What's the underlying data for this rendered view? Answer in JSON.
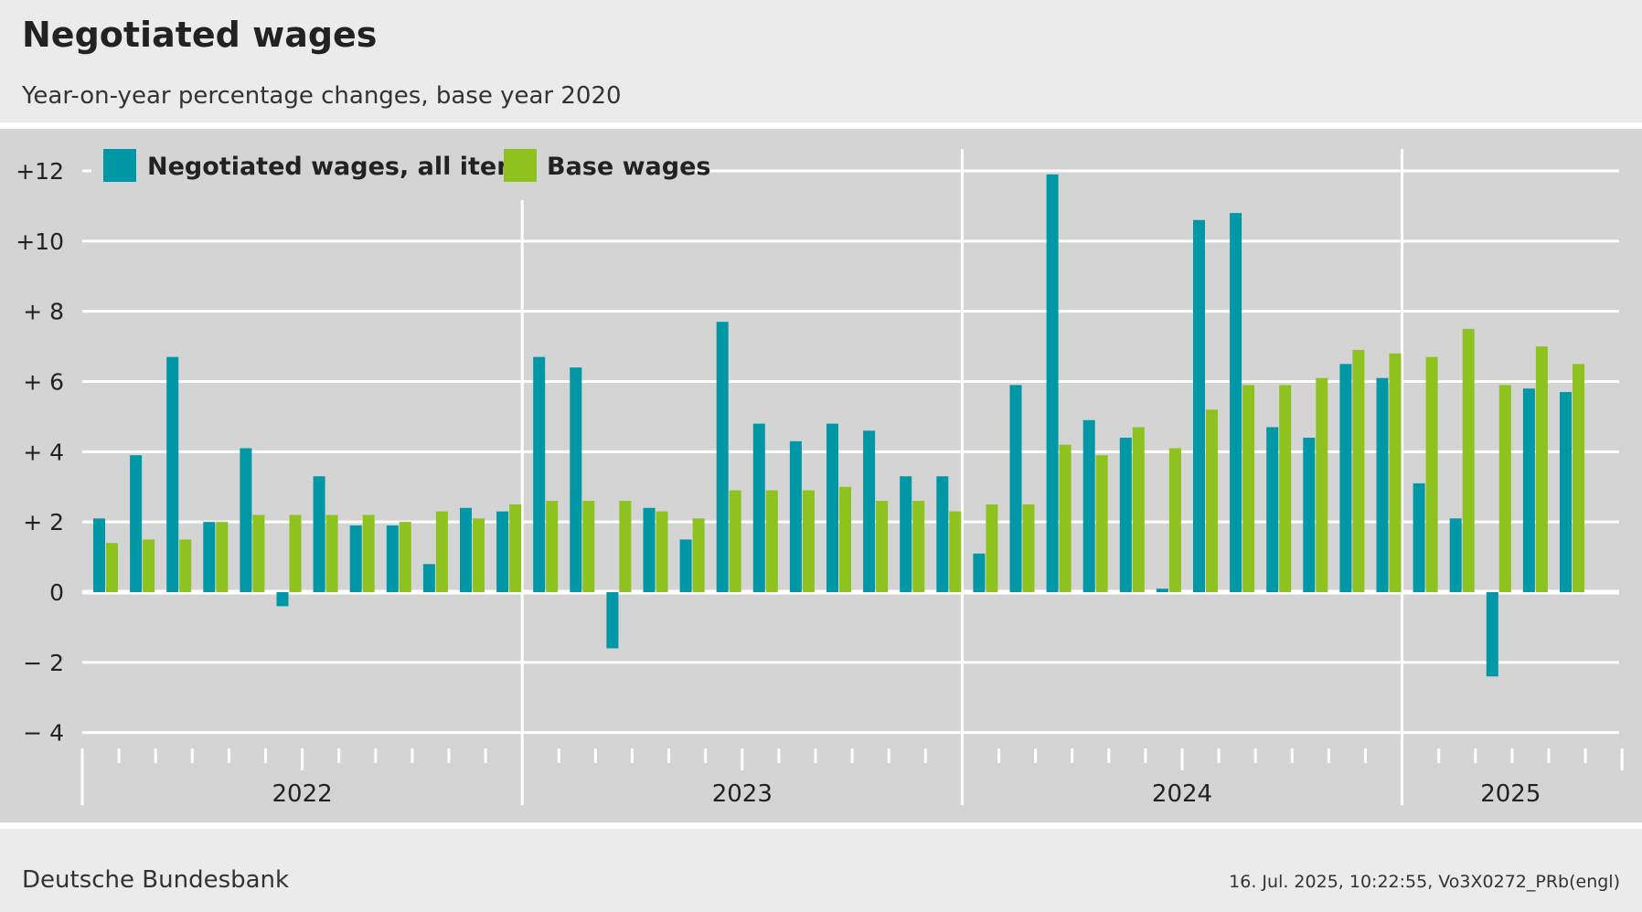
{
  "title": "Negotiated wages",
  "subtitle": "Year-on-year percentage changes, base year 2020",
  "source": "Deutsche Bundesbank",
  "timestamp": "16. Jul. 2025, 10:22:55, Vo3X0272_PRb(engl)",
  "colors": {
    "all_items": "#0097a7",
    "base_wages": "#8dc21f",
    "panel": "#d4d4d4",
    "grid": "#ffffff"
  },
  "chart_data": {
    "type": "bar",
    "frequency": "monthly",
    "years": [
      "2022",
      "2023",
      "2024",
      "2025"
    ],
    "categories": [
      "2022-01",
      "2022-02",
      "2022-03",
      "2022-04",
      "2022-05",
      "2022-06",
      "2022-07",
      "2022-08",
      "2022-09",
      "2022-10",
      "2022-11",
      "2022-12",
      "2023-01",
      "2023-02",
      "2023-03",
      "2023-04",
      "2023-05",
      "2023-06",
      "2023-07",
      "2023-08",
      "2023-09",
      "2023-10",
      "2023-11",
      "2023-12",
      "2024-01",
      "2024-02",
      "2024-03",
      "2024-04",
      "2024-05",
      "2024-06",
      "2024-07",
      "2024-08",
      "2024-09",
      "2024-10",
      "2024-11",
      "2024-12",
      "2025-01",
      "2025-02",
      "2025-03",
      "2025-04",
      "2025-05"
    ],
    "series": [
      {
        "name": "Negotiated wages, all items",
        "values": [
          2.1,
          3.9,
          6.7,
          2.0,
          4.1,
          -0.4,
          3.3,
          1.9,
          1.9,
          0.8,
          2.4,
          2.3,
          6.7,
          6.4,
          -1.6,
          2.4,
          1.5,
          7.7,
          4.8,
          4.3,
          4.8,
          4.6,
          3.3,
          3.3,
          1.1,
          5.9,
          11.9,
          4.9,
          4.4,
          0.1,
          10.6,
          10.8,
          4.7,
          4.4,
          6.5,
          6.1,
          3.1,
          2.1,
          -2.4,
          5.8,
          5.7
        ]
      },
      {
        "name": "Base wages",
        "values": [
          1.4,
          1.5,
          1.5,
          2.0,
          2.2,
          2.2,
          2.2,
          2.2,
          2.0,
          2.3,
          2.1,
          2.5,
          2.6,
          2.6,
          2.6,
          2.3,
          2.1,
          2.9,
          2.9,
          2.9,
          3.0,
          2.6,
          2.6,
          2.3,
          2.5,
          2.5,
          4.2,
          3.9,
          4.7,
          4.1,
          5.2,
          5.9,
          5.9,
          6.1,
          6.9,
          6.8,
          6.7,
          7.5,
          5.9,
          7.0,
          6.5
        ]
      }
    ],
    "ylim": [
      -4,
      13
    ],
    "yticks": [
      12,
      10,
      8,
      6,
      4,
      2,
      0,
      -2,
      -4
    ],
    "ytick_labels": [
      "+12",
      "+10",
      "+  8",
      "+  6",
      "+  4",
      "+  2",
      "0",
      "−  2",
      "−  4"
    ],
    "grid": true,
    "legend": "top-left"
  }
}
